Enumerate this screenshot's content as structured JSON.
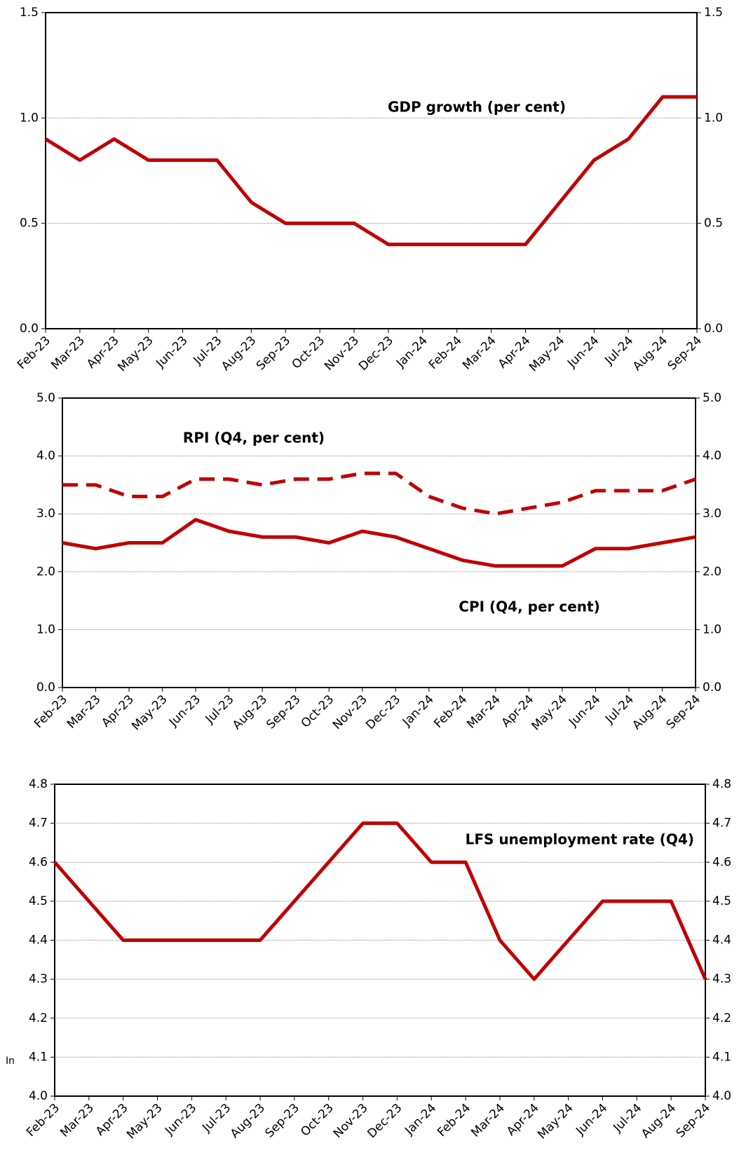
{
  "chart_data": [
    {
      "type": "line",
      "categories": [
        "Feb-23",
        "Mar-23",
        "Apr-23",
        "May-23",
        "Jun-23",
        "Jul-23",
        "Aug-23",
        "Sep-23",
        "Oct-23",
        "Nov-23",
        "Dec-23",
        "Jan-24",
        "Feb-24",
        "Mar-24",
        "Apr-24",
        "May-24",
        "Jun-24",
        "Jul-24",
        "Aug-24",
        "Sep-24"
      ],
      "series": [
        {
          "name": "GDP growth (per cent)",
          "color": "#c00000",
          "style": "solid",
          "values": [
            0.9,
            0.8,
            0.9,
            0.8,
            0.8,
            0.8,
            0.6,
            0.5,
            0.5,
            0.5,
            0.4,
            0.4,
            0.4,
            0.4,
            0.4,
            0.6,
            0.8,
            0.9,
            1.1,
            1.1
          ]
        }
      ],
      "ylim": [
        0,
        1.5
      ],
      "yticks": [
        {
          "value": 0,
          "label": "0.0"
        },
        0.5,
        {
          "value": 1,
          "label": "1.0"
        },
        1.5
      ],
      "grid": true
    },
    {
      "type": "line",
      "categories": [
        "Feb-23",
        "Mar-23",
        "Apr-23",
        "May-23",
        "Jun-23",
        "Jul-23",
        "Aug-23",
        "Sep-23",
        "Oct-23",
        "Nov-23",
        "Dec-23",
        "Jan-24",
        "Feb-24",
        "Mar-24",
        "Apr-24",
        "May-24",
        "Jun-24",
        "Jul-24",
        "Aug-24",
        "Sep-24"
      ],
      "series": [
        {
          "name": "RPI (Q4, per cent)",
          "color": "#c00000",
          "style": "dashed",
          "values": [
            3.5,
            3.5,
            3.3,
            3.3,
            3.6,
            3.6,
            3.5,
            3.6,
            3.6,
            3.7,
            3.7,
            3.3,
            3.1,
            3.0,
            3.1,
            3.2,
            3.4,
            3.4,
            3.4,
            3.6
          ]
        },
        {
          "name": "CPI (Q4, per cent)",
          "color": "#c00000",
          "style": "solid",
          "values": [
            2.5,
            2.4,
            2.5,
            2.5,
            2.9,
            2.7,
            2.6,
            2.6,
            2.5,
            2.7,
            2.6,
            2.4,
            2.2,
            2.1,
            2.1,
            2.1,
            2.4,
            2.4,
            2.5,
            2.6
          ]
        }
      ],
      "ylim": [
        0,
        5
      ],
      "yticks": [
        {
          "value": 0,
          "label": "0.0"
        },
        {
          "value": 1,
          "label": "1.0"
        },
        {
          "value": 2,
          "label": "2.0"
        },
        {
          "value": 3,
          "label": "3.0"
        },
        {
          "value": 4,
          "label": "4.0"
        },
        {
          "value": 5,
          "label": "5.0"
        }
      ],
      "grid": true
    },
    {
      "type": "line",
      "categories": [
        "Feb-23",
        "Mar-23",
        "Apr-23",
        "May-23",
        "Jun-23",
        "Jul-23",
        "Aug-23",
        "Sep-23",
        "Oct-23",
        "Nov-23",
        "Dec-23",
        "Jan-24",
        "Feb-24",
        "Mar-24",
        "Apr-24",
        "May-24",
        "Jun-24",
        "Jul-24",
        "Aug-24",
        "Sep-24"
      ],
      "series": [
        {
          "name": "LFS unemployment rate (Q4)",
          "color": "#c00000",
          "style": "solid",
          "values": [
            4.6,
            4.5,
            4.4,
            4.4,
            4.4,
            4.4,
            4.4,
            4.5,
            4.6,
            4.7,
            4.7,
            4.6,
            4.6,
            4.4,
            4.3,
            4.4,
            4.5,
            4.5,
            4.5,
            4.3
          ]
        }
      ],
      "ylim": [
        4,
        4.8
      ],
      "yticks": [
        {
          "value": 4,
          "label": "4.0"
        },
        4.1,
        4.2,
        4.3,
        4.4,
        4.5,
        4.6,
        4.7,
        4.8
      ],
      "grid": true,
      "note": "In"
    }
  ]
}
